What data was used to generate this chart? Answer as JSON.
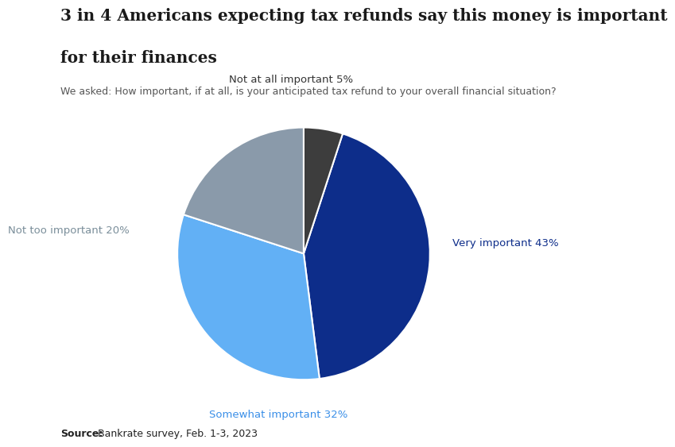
{
  "title_line1": "3 in 4 Americans expecting tax refunds say this money is important",
  "title_line2": "for their finances",
  "subtitle": "We asked: How important, if at all, is your anticipated tax refund to your overall financial situation?",
  "source_bold": "Source:",
  "source_rest": " Bankrate survey, Feb. 1-3, 2023",
  "slices": [
    43,
    32,
    20,
    5
  ],
  "labels": [
    "Very important 43%",
    "Somewhat important 32%",
    "Not too important 20%",
    "Not at all important 5%"
  ],
  "colors": [
    "#0d2d8a",
    "#62b0f5",
    "#8a9aaa",
    "#3d3d3d"
  ],
  "label_colors": [
    "#0d2d8a",
    "#3a8fe8",
    "#7a8e9a",
    "#333333"
  ],
  "startangle": 72,
  "background_color": "#ffffff",
  "figsize": [
    9.0,
    5.84
  ]
}
